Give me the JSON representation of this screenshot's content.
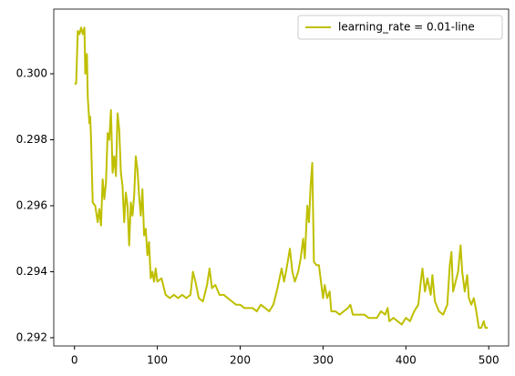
{
  "chart_data": {
    "type": "line",
    "x": [
      0,
      2,
      4,
      6,
      8,
      10,
      12,
      13,
      15,
      16,
      18,
      19,
      20,
      22,
      25,
      28,
      30,
      32,
      34,
      36,
      38,
      40,
      42,
      44,
      46,
      48,
      50,
      52,
      54,
      56,
      58,
      60,
      62,
      64,
      66,
      68,
      70,
      72,
      74,
      76,
      78,
      80,
      82,
      84,
      86,
      88,
      90,
      92,
      94,
      96,
      98,
      100,
      105,
      110,
      115,
      120,
      125,
      130,
      135,
      140,
      143,
      146,
      150,
      155,
      160,
      163,
      166,
      170,
      175,
      180,
      185,
      190,
      195,
      200,
      205,
      210,
      215,
      220,
      225,
      230,
      235,
      240,
      245,
      250,
      253,
      256,
      260,
      263,
      266,
      270,
      273,
      276,
      278,
      281,
      283,
      285,
      287,
      289,
      292,
      295,
      298,
      300,
      302,
      305,
      308,
      310,
      315,
      320,
      325,
      330,
      333,
      336,
      340,
      345,
      350,
      355,
      360,
      365,
      370,
      375,
      378,
      380,
      385,
      390,
      395,
      400,
      405,
      410,
      415,
      418,
      420,
      423,
      426,
      430,
      432,
      435,
      440,
      445,
      450,
      453,
      455,
      457,
      460,
      463,
      466,
      468,
      471,
      474,
      476,
      479,
      482,
      485,
      488,
      491,
      494,
      496,
      499
    ],
    "series": [
      {
        "name": "learning_rate = 0.01-line",
        "color": "#bfbf00",
        "values": [
          0.2997,
          0.2997,
          0.3013,
          0.3012,
          0.3014,
          0.3012,
          0.3014,
          0.3,
          0.3006,
          0.2993,
          0.2985,
          0.2987,
          0.298,
          0.2961,
          0.296,
          0.2955,
          0.2959,
          0.2954,
          0.2968,
          0.2962,
          0.2967,
          0.2982,
          0.298,
          0.2989,
          0.297,
          0.2975,
          0.2969,
          0.2988,
          0.2983,
          0.297,
          0.2966,
          0.2955,
          0.2964,
          0.296,
          0.2948,
          0.2961,
          0.2957,
          0.2963,
          0.2975,
          0.2971,
          0.2963,
          0.2957,
          0.2965,
          0.2951,
          0.2953,
          0.2945,
          0.2949,
          0.2938,
          0.294,
          0.2937,
          0.2941,
          0.2937,
          0.2938,
          0.2933,
          0.2932,
          0.2933,
          0.2932,
          0.2933,
          0.2932,
          0.2933,
          0.294,
          0.2937,
          0.2932,
          0.2931,
          0.2936,
          0.2941,
          0.2935,
          0.2936,
          0.2933,
          0.2933,
          0.2932,
          0.2931,
          0.293,
          0.293,
          0.2929,
          0.2929,
          0.2929,
          0.2928,
          0.293,
          0.2929,
          0.2928,
          0.293,
          0.2935,
          0.2941,
          0.2937,
          0.2941,
          0.2947,
          0.294,
          0.2937,
          0.294,
          0.2944,
          0.295,
          0.2944,
          0.296,
          0.2955,
          0.2966,
          0.2973,
          0.2943,
          0.2942,
          0.2942,
          0.2936,
          0.2932,
          0.2936,
          0.2932,
          0.2934,
          0.2928,
          0.2928,
          0.2927,
          0.2928,
          0.2929,
          0.293,
          0.2927,
          0.2927,
          0.2927,
          0.2927,
          0.2926,
          0.2926,
          0.2926,
          0.2928,
          0.2927,
          0.2929,
          0.2925,
          0.2926,
          0.2925,
          0.2924,
          0.2926,
          0.2925,
          0.2928,
          0.293,
          0.2937,
          0.2941,
          0.2934,
          0.2938,
          0.2933,
          0.2939,
          0.2931,
          0.2928,
          0.2927,
          0.293,
          0.2942,
          0.2946,
          0.2934,
          0.2937,
          0.294,
          0.2948,
          0.294,
          0.2934,
          0.2939,
          0.2932,
          0.293,
          0.2932,
          0.2928,
          0.2923,
          0.2923,
          0.2925,
          0.2923,
          0.2923
        ]
      }
    ],
    "xlim": [
      -25,
      524
    ],
    "ylim": [
      0.29175,
      0.30196
    ],
    "xticks": [
      0,
      100,
      200,
      300,
      400,
      500
    ],
    "yticks": [
      0.292,
      0.294,
      0.296,
      0.298,
      {
        "value": 0.3,
        "label": "0.300"
      }
    ],
    "grid": false,
    "legend": "upper right"
  }
}
